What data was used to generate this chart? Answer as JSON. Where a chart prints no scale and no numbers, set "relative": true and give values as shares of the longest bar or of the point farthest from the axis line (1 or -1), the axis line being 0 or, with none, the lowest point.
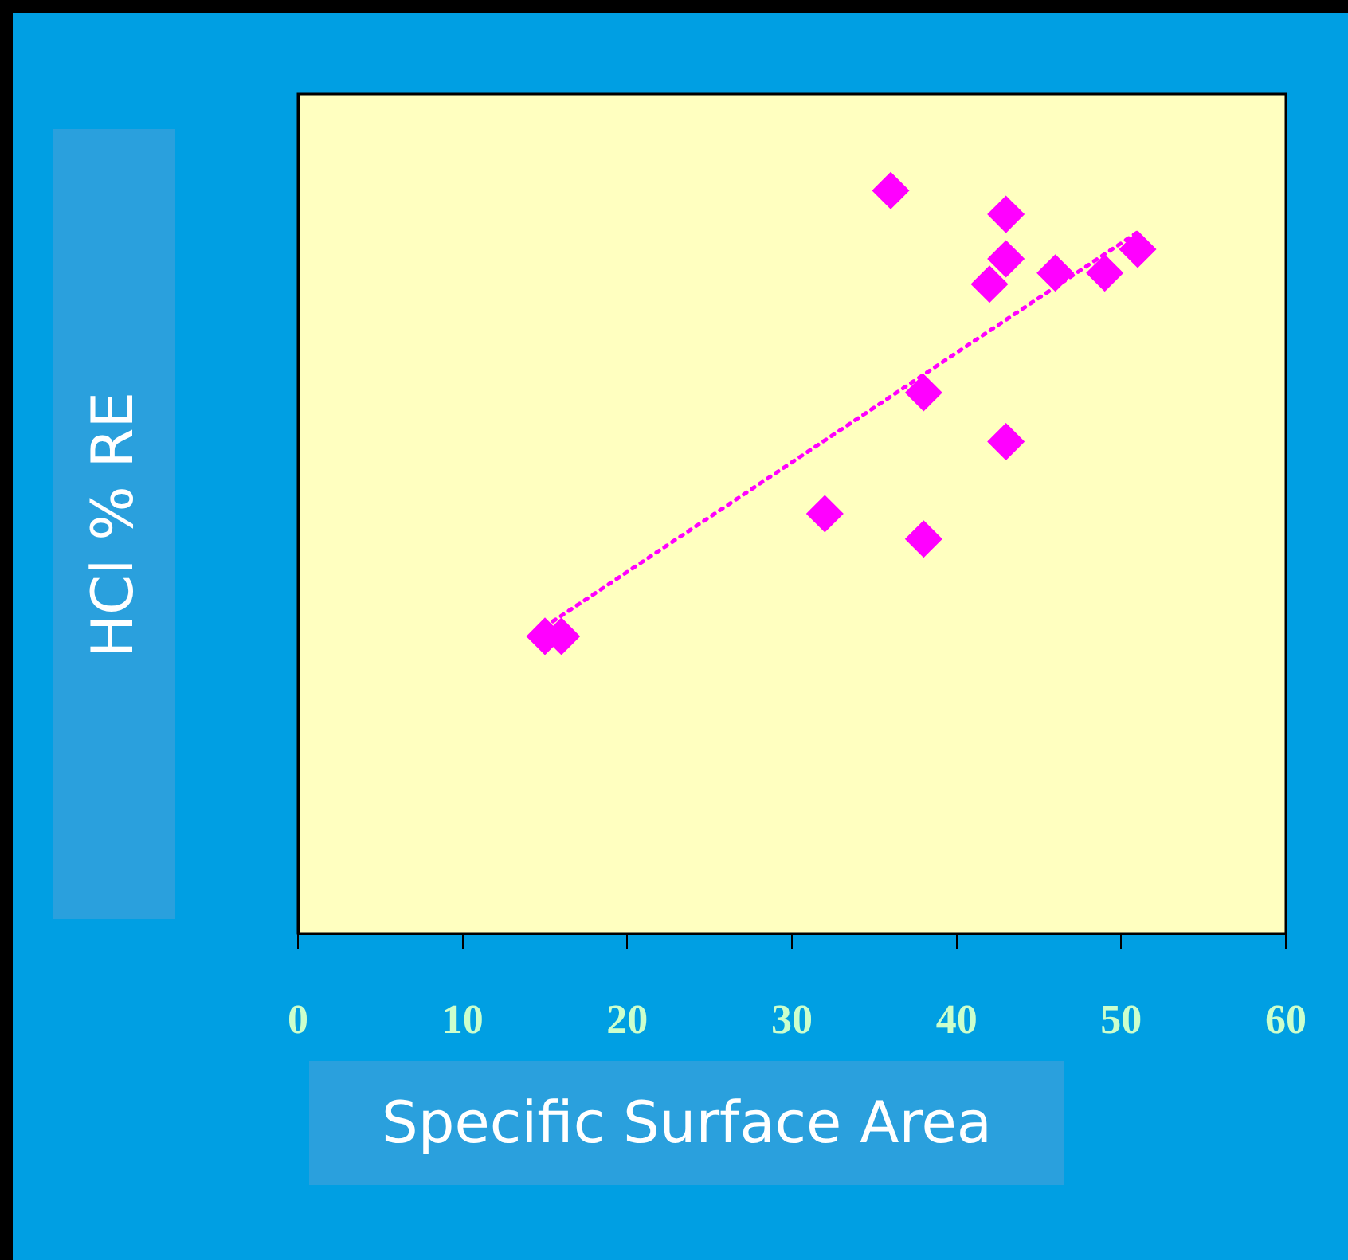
{
  "chart_data": {
    "type": "scatter",
    "xlabel": "Specific Surface Area",
    "ylabel": "HCl % RE",
    "relative": true,
    "xlim": [
      0,
      60
    ],
    "xticks": [
      0,
      10,
      20,
      30,
      40,
      50,
      60
    ],
    "tick_labels": "x",
    "series": [
      {
        "color": "#ff00ff",
        "marker": "diamond",
        "x": [
          15,
          16,
          32,
          36,
          38,
          38,
          42,
          43,
          43,
          43,
          46,
          49,
          51
        ],
        "values": [
          0.4,
          0.4,
          0.565,
          1,
          0.728,
          0.531,
          0.874,
          0.968,
          0.908,
          0.662,
          0.889,
          0.889,
          0.921
        ]
      },
      {
        "type": "line",
        "color": "#ff00ff",
        "marker": "none",
        "line_style": "dotted",
        "x": [
          15,
          51
        ],
        "values": [
          0.413,
          0.944
        ]
      }
    ]
  }
}
